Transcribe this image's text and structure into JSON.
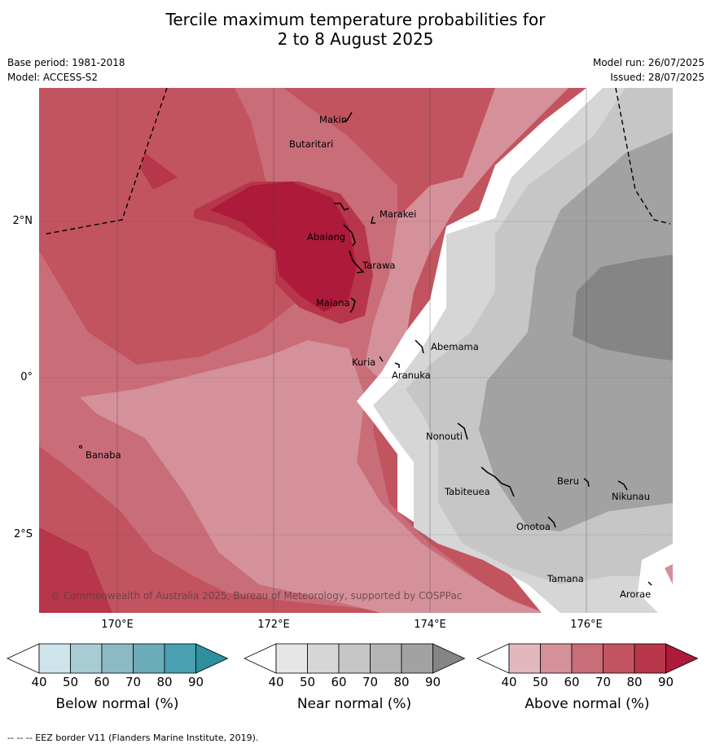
{
  "title": {
    "line1": "Tercile maximum temperature probabilities for",
    "line2": "2 to 8 August 2025"
  },
  "meta_left": {
    "base_period": "Base period: 1981-2018",
    "model": "Model: ACCESS-S2"
  },
  "meta_right": {
    "model_run": "Model run: 26/07/2025",
    "issued": "Issued: 28/07/2025"
  },
  "map": {
    "copyright": "© Commonwealth of Australia 2025, Bureau of Meteorology, supported by COSPPac",
    "lon_labels": [
      "170°E",
      "172°E",
      "174°E",
      "176°E"
    ],
    "lat_labels": [
      "2°N",
      "0°",
      "2°S"
    ],
    "islands": [
      "Makin",
      "Butaritari",
      "Marakei",
      "Abaiang",
      "Tarawa",
      "Maiana",
      "Abemama",
      "Kuria",
      "Aranuka",
      "Nonouti",
      "Banaba",
      "Tabiteuea",
      "Beru",
      "Nikunau",
      "Onotoa",
      "Tamana",
      "Arorae"
    ]
  },
  "colorbars": [
    {
      "title": "Below normal (%)",
      "ticks": [
        "40",
        "50",
        "60",
        "70",
        "80",
        "90"
      ],
      "colors": [
        "#ffffff",
        "#cde4ea",
        "#a8cbd4",
        "#8bbac5",
        "#6cabb8",
        "#48a0b0",
        "#2e8f9f"
      ]
    },
    {
      "title": "Near normal (%)",
      "ticks": [
        "40",
        "50",
        "60",
        "70",
        "80",
        "90"
      ],
      "colors": [
        "#ffffff",
        "#e6e6e6",
        "#d6d6d6",
        "#c6c6c6",
        "#b4b4b4",
        "#a2a2a2",
        "#858585"
      ]
    },
    {
      "title": "Above normal (%)",
      "ticks": [
        "40",
        "50",
        "60",
        "70",
        "80",
        "90"
      ],
      "colors": [
        "#ffffff",
        "#e1b8be",
        "#d5919a",
        "#c96d79",
        "#c2545f",
        "#b8364a",
        "#ad1a3a"
      ]
    }
  ],
  "footer": "--  --  -- EEZ border V11 (Flanders Marine Institute, 2019)."
}
